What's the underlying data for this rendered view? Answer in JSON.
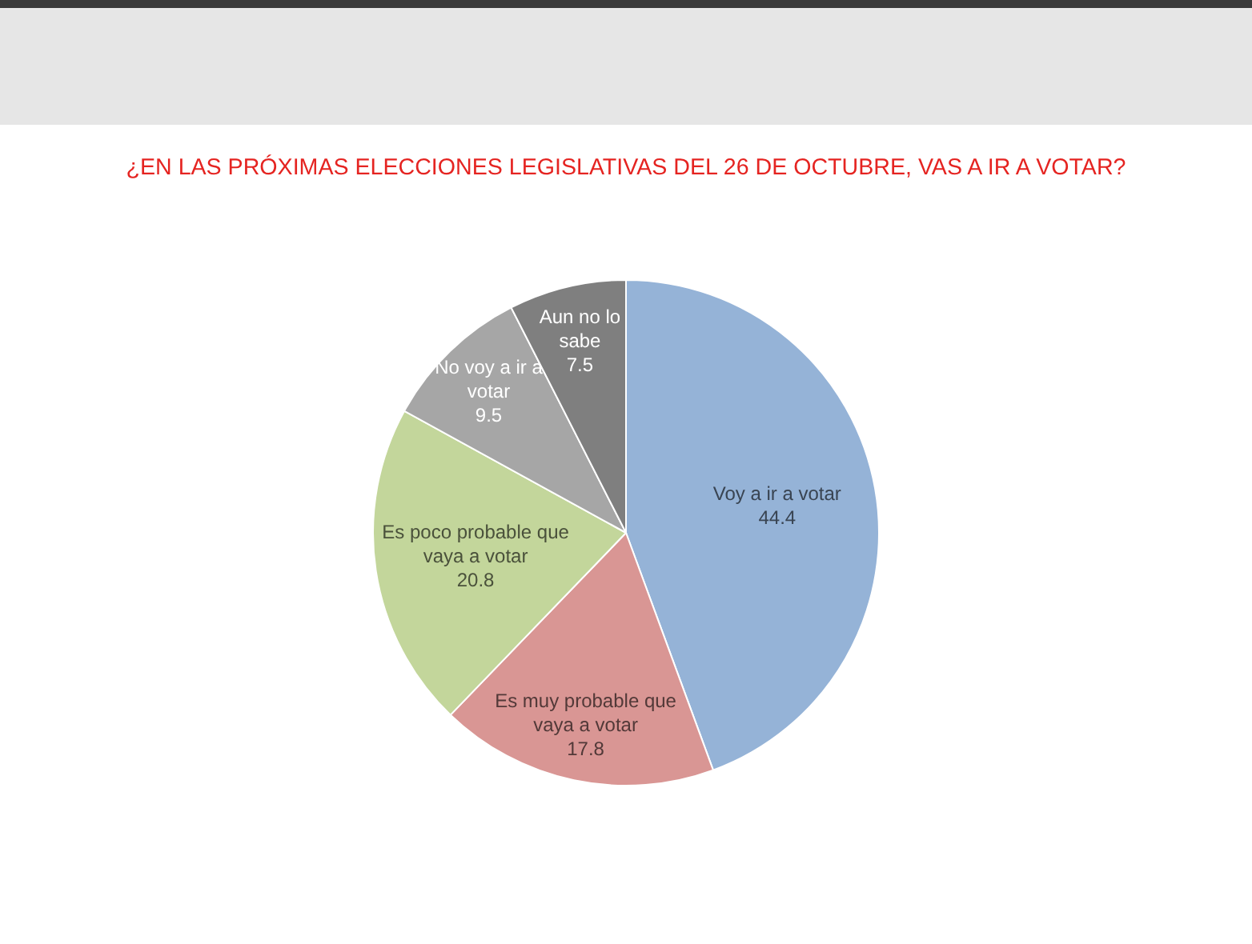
{
  "chart_data": {
    "type": "pie",
    "title": "¿EN LAS PRÓXIMAS ELECCIONES LEGISLATIVAS DEL 26 DE OCTUBRE, VAS A IR A VOTAR?",
    "categories": [
      "Voy a ir a votar",
      "Es muy probable que vaya a votar",
      "Es poco probable que vaya a votar",
      "No voy a ir a votar",
      "Aun no lo sabe"
    ],
    "values": [
      44.4,
      17.8,
      20.8,
      9.5,
      7.5
    ],
    "colors": [
      "#95b3d7",
      "#d99694",
      "#c3d69b",
      "#a6a6a6",
      "#7f7f7f"
    ],
    "data_labels": true
  }
}
